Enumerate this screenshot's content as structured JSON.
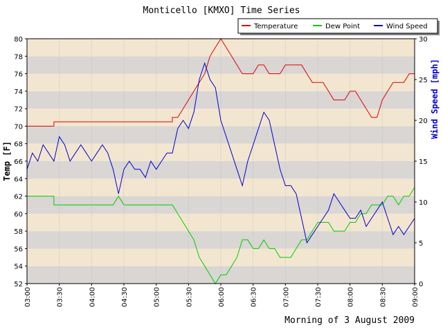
{
  "chart_data": {
    "type": "line",
    "title": "Monticello [KMXO] Time Series",
    "footer": "Morning of 3 August 2009",
    "left_axis": {
      "label": "Temp [F]",
      "range": [
        52,
        80
      ],
      "ticks": [
        "52",
        "54",
        "56",
        "58",
        "60",
        "62",
        "64",
        "66",
        "68",
        "70",
        "72",
        "74",
        "76",
        "78",
        "80"
      ]
    },
    "right_axis": {
      "label": "Wind Speed [mph]",
      "range": [
        0,
        30
      ],
      "ticks": [
        "0",
        "5",
        "10",
        "15",
        "20",
        "25",
        "30"
      ]
    },
    "x_axis": {
      "range": [
        "03:00",
        "09:00"
      ],
      "ticks": [
        "03:00",
        "03:30",
        "04:00",
        "04:30",
        "05:00",
        "05:30",
        "06:00",
        "06:30",
        "07:00",
        "07:30",
        "08:00",
        "08:30",
        "09:00"
      ]
    },
    "grid": true,
    "background_bands": [
      "#d9d6d4",
      "#f3e6d0"
    ],
    "legend_position": "top-right",
    "series": [
      {
        "name": "Temperature",
        "axis": "left",
        "color": "#dd0000",
        "points": [
          [
            "03:00",
            70
          ],
          [
            "03:25",
            70
          ],
          [
            "03:25",
            70.5
          ],
          [
            "05:15",
            70.5
          ],
          [
            "05:15",
            71
          ],
          [
            "05:20",
            71
          ],
          [
            "05:25",
            72
          ],
          [
            "05:30",
            73
          ],
          [
            "05:35",
            74
          ],
          [
            "05:40",
            75
          ],
          [
            "05:45",
            76
          ],
          [
            "05:50",
            78
          ],
          [
            "05:55",
            79
          ],
          [
            "06:00",
            80
          ],
          [
            "06:05",
            79
          ],
          [
            "06:10",
            78
          ],
          [
            "06:15",
            77
          ],
          [
            "06:20",
            76
          ],
          [
            "06:30",
            76
          ],
          [
            "06:35",
            77
          ],
          [
            "06:40",
            77
          ],
          [
            "06:45",
            76
          ],
          [
            "06:55",
            76
          ],
          [
            "07:00",
            77
          ],
          [
            "07:10",
            77
          ],
          [
            "07:15",
            77
          ],
          [
            "07:20",
            76
          ],
          [
            "07:25",
            75
          ],
          [
            "07:35",
            75
          ],
          [
            "07:40",
            74
          ],
          [
            "07:45",
            73
          ],
          [
            "07:55",
            73
          ],
          [
            "08:00",
            74
          ],
          [
            "08:05",
            74
          ],
          [
            "08:10",
            73
          ],
          [
            "08:15",
            72
          ],
          [
            "08:20",
            71
          ],
          [
            "08:25",
            71
          ],
          [
            "08:30",
            73
          ],
          [
            "08:35",
            74
          ],
          [
            "08:40",
            75
          ],
          [
            "08:50",
            75
          ],
          [
            "08:55",
            76
          ],
          [
            "09:00",
            76
          ]
        ]
      },
      {
        "name": "Dew Point",
        "axis": "left",
        "color": "#00cc00",
        "points": [
          [
            "03:00",
            62
          ],
          [
            "03:25",
            62
          ],
          [
            "03:25",
            61
          ],
          [
            "03:40",
            61
          ],
          [
            "03:45",
            61
          ],
          [
            "04:20",
            61
          ],
          [
            "04:25",
            62
          ],
          [
            "04:30",
            61
          ],
          [
            "04:55",
            61
          ],
          [
            "05:05",
            61
          ],
          [
            "05:15",
            61
          ],
          [
            "05:20",
            60
          ],
          [
            "05:25",
            59
          ],
          [
            "05:30",
            58
          ],
          [
            "05:35",
            57
          ],
          [
            "05:40",
            55
          ],
          [
            "05:45",
            54
          ],
          [
            "05:50",
            53
          ],
          [
            "05:55",
            52
          ],
          [
            "06:00",
            53
          ],
          [
            "06:05",
            53
          ],
          [
            "06:10",
            54
          ],
          [
            "06:15",
            55
          ],
          [
            "06:20",
            57
          ],
          [
            "06:25",
            57
          ],
          [
            "06:30",
            56
          ],
          [
            "06:35",
            56
          ],
          [
            "06:40",
            57
          ],
          [
            "06:45",
            56
          ],
          [
            "06:50",
            56
          ],
          [
            "06:55",
            55
          ],
          [
            "07:05",
            55
          ],
          [
            "07:10",
            56
          ],
          [
            "07:15",
            57
          ],
          [
            "07:20",
            57
          ],
          [
            "07:25",
            58
          ],
          [
            "07:30",
            59
          ],
          [
            "07:40",
            59
          ],
          [
            "07:45",
            58
          ],
          [
            "07:55",
            58
          ],
          [
            "08:00",
            59
          ],
          [
            "08:05",
            59
          ],
          [
            "08:10",
            60
          ],
          [
            "08:15",
            60
          ],
          [
            "08:20",
            61
          ],
          [
            "08:30",
            61
          ],
          [
            "08:35",
            62
          ],
          [
            "08:40",
            62
          ],
          [
            "08:45",
            61
          ],
          [
            "08:50",
            62
          ],
          [
            "08:55",
            62
          ],
          [
            "09:00",
            63
          ]
        ]
      },
      {
        "name": "Wind Speed",
        "axis": "right",
        "color": "#0000cc",
        "points": [
          [
            "03:00",
            14
          ],
          [
            "03:05",
            16
          ],
          [
            "03:10",
            15
          ],
          [
            "03:15",
            17
          ],
          [
            "03:20",
            16
          ],
          [
            "03:25",
            15
          ],
          [
            "03:30",
            18
          ],
          [
            "03:35",
            17
          ],
          [
            "03:40",
            15
          ],
          [
            "03:45",
            16
          ],
          [
            "03:50",
            17
          ],
          [
            "03:55",
            16
          ],
          [
            "04:00",
            15
          ],
          [
            "04:05",
            16
          ],
          [
            "04:10",
            17
          ],
          [
            "04:15",
            16
          ],
          [
            "04:20",
            14
          ],
          [
            "04:25",
            11
          ],
          [
            "04:30",
            14
          ],
          [
            "04:35",
            15
          ],
          [
            "04:40",
            14
          ],
          [
            "04:45",
            14
          ],
          [
            "04:50",
            13
          ],
          [
            "04:55",
            15
          ],
          [
            "05:00",
            14
          ],
          [
            "05:05",
            15
          ],
          [
            "05:10",
            16
          ],
          [
            "05:15",
            16
          ],
          [
            "05:20",
            19
          ],
          [
            "05:25",
            20
          ],
          [
            "05:30",
            19
          ],
          [
            "05:35",
            21
          ],
          [
            "05:40",
            25
          ],
          [
            "05:45",
            27
          ],
          [
            "05:50",
            25
          ],
          [
            "05:55",
            24
          ],
          [
            "06:00",
            20
          ],
          [
            "06:05",
            18
          ],
          [
            "06:10",
            16
          ],
          [
            "06:15",
            14
          ],
          [
            "06:20",
            12
          ],
          [
            "06:25",
            15
          ],
          [
            "06:30",
            17
          ],
          [
            "06:35",
            19
          ],
          [
            "06:40",
            21
          ],
          [
            "06:45",
            20
          ],
          [
            "06:50",
            17
          ],
          [
            "06:55",
            14
          ],
          [
            "07:00",
            12
          ],
          [
            "07:05",
            12
          ],
          [
            "07:10",
            11
          ],
          [
            "07:15",
            8
          ],
          [
            "07:20",
            5
          ],
          [
            "07:25",
            6
          ],
          [
            "07:30",
            7
          ],
          [
            "07:35",
            8
          ],
          [
            "07:40",
            9
          ],
          [
            "07:45",
            11
          ],
          [
            "07:50",
            10
          ],
          [
            "07:55",
            9
          ],
          [
            "08:00",
            8
          ],
          [
            "08:05",
            8
          ],
          [
            "08:10",
            9
          ],
          [
            "08:15",
            7
          ],
          [
            "08:20",
            8
          ],
          [
            "08:25",
            9
          ],
          [
            "08:30",
            10
          ],
          [
            "08:35",
            8
          ],
          [
            "08:40",
            6
          ],
          [
            "08:45",
            7
          ],
          [
            "08:50",
            6
          ],
          [
            "08:55",
            7
          ],
          [
            "09:00",
            8
          ]
        ]
      }
    ]
  }
}
